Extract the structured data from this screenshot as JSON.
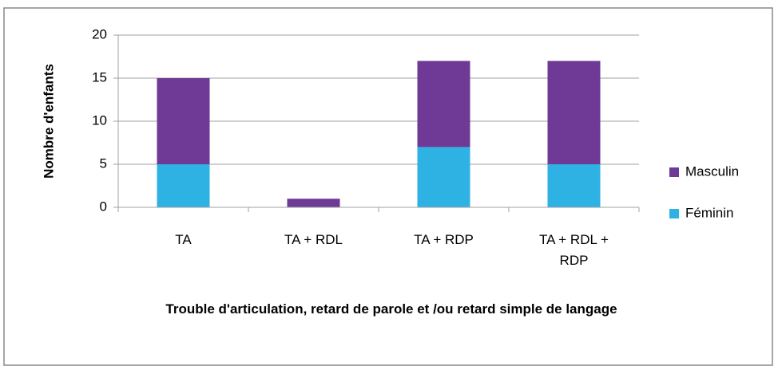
{
  "chart_data": {
    "type": "stacked_bar",
    "categories": [
      "TA",
      "TA + RDL",
      "TA + RDP",
      "TA + RDL + RDP"
    ],
    "series": [
      {
        "name": "Féminin",
        "color": "#2eb2e4",
        "values": [
          5,
          0,
          7,
          5
        ]
      },
      {
        "name": "Masculin",
        "color": "#6e3a96",
        "values": [
          10,
          1,
          10,
          12
        ]
      }
    ],
    "ylim": [
      0,
      20
    ],
    "yticks": [
      0,
      5,
      10,
      15,
      20
    ],
    "grid": true,
    "y_label": "Nombre d'enfants",
    "x_label": "Trouble d'articulation, retard de parole et /ou retard simple de langage",
    "legend": "right"
  }
}
